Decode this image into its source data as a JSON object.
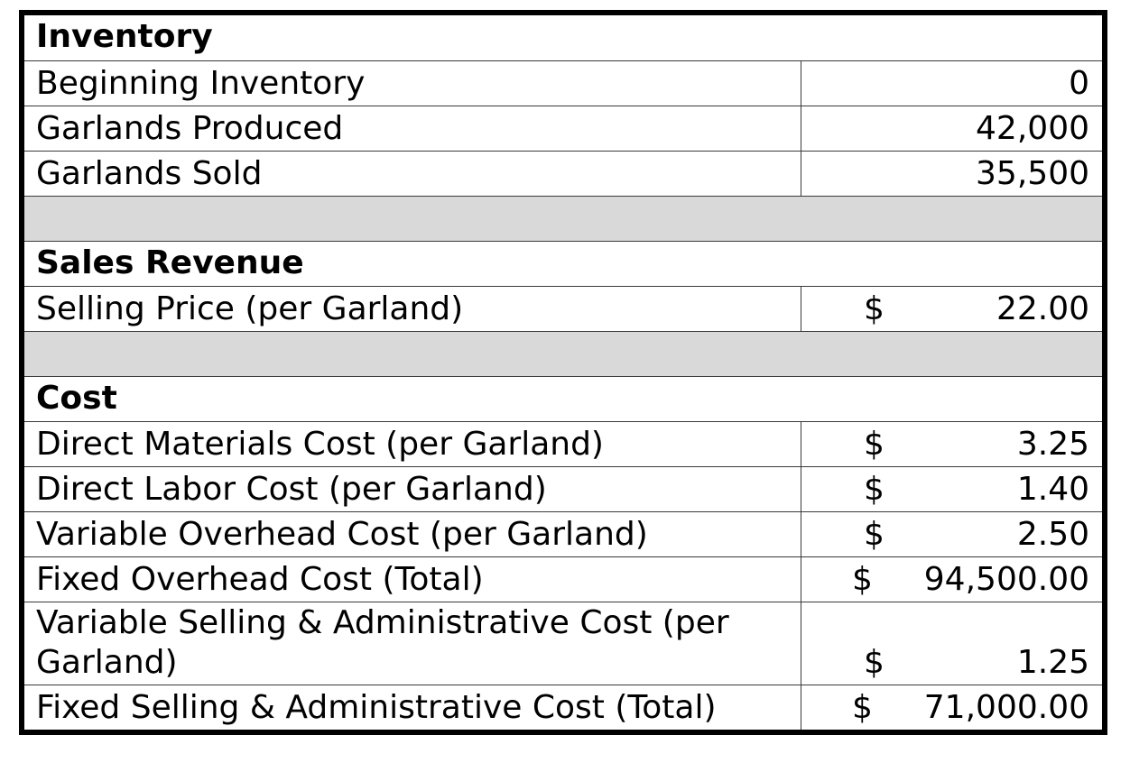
{
  "sections": {
    "inventory": {
      "title": "Inventory",
      "rows": [
        {
          "label": "Beginning Inventory",
          "value": "0"
        },
        {
          "label": "Garlands Produced",
          "value": "42,000"
        },
        {
          "label": "Garlands Sold",
          "value": "35,500"
        }
      ]
    },
    "sales_revenue": {
      "title": "Sales Revenue",
      "rows": [
        {
          "label": "Selling Price (per Garland)",
          "currency": "$",
          "value": "22.00"
        }
      ]
    },
    "cost": {
      "title": "Cost",
      "rows": [
        {
          "label": "Direct Materials Cost (per Garland)",
          "currency": "$",
          "value": "3.25"
        },
        {
          "label": "Direct Labor Cost (per Garland)",
          "currency": "$",
          "value": "1.40"
        },
        {
          "label": "Variable Overhead Cost (per Garland)",
          "currency": "$",
          "value": "2.50"
        },
        {
          "label": "Fixed Overhead Cost (Total)",
          "currency": "$",
          "value": "94,500.00"
        },
        {
          "label": "Variable Selling & Administrative Cost (per Garland)",
          "currency": "$",
          "value": "1.25"
        },
        {
          "label": "Fixed Selling & Administrative Cost (Total)",
          "currency": "$",
          "value": "71,000.00"
        }
      ]
    }
  },
  "colors": {
    "spacer_fill": "#d9d9d9",
    "border": "#000000"
  }
}
